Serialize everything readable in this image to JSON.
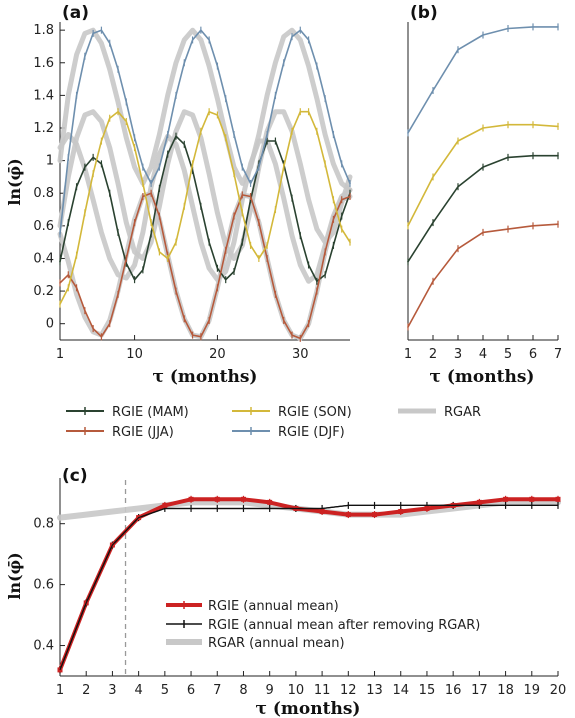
{
  "colors": {
    "MAM": "#2a4230",
    "JJA": "#b65a3c",
    "SON": "#d3b83a",
    "DJF": "#6e8fae",
    "RGAR": "#c8c8c8",
    "annual": "#cc2222",
    "removed": "#111111",
    "vline": "#999999"
  },
  "panels": {
    "a": {
      "label": "(a)"
    },
    "b": {
      "label": "(b)"
    },
    "c": {
      "label": "(c)"
    }
  },
  "legend_top": [
    {
      "key": "MAM",
      "label": "RGIE (MAM)"
    },
    {
      "key": "SON",
      "label": "RGIE (SON)"
    },
    {
      "key": "RGAR",
      "label": "RGAR"
    },
    {
      "key": "JJA",
      "label": "RGIE (JJA)"
    },
    {
      "key": "DJF",
      "label": "RGIE (DJF)"
    }
  ],
  "legend_c": [
    {
      "key": "annual",
      "label": "RGIE (annual mean)"
    },
    {
      "key": "removed",
      "label": "RGIE (annual mean after removing RGAR)"
    },
    {
      "key": "RGAR",
      "label": "RGAR (annual mean)"
    }
  ],
  "chart_data": [
    {
      "panel": "a",
      "type": "line",
      "xlabel": "τ (months)",
      "ylabel": "ln(φ̄)",
      "xlim": [
        1,
        36
      ],
      "ylim": [
        -0.1,
        1.85
      ],
      "xticks": [
        1,
        10,
        20,
        30
      ],
      "yticks": [
        0,
        0.2,
        0.4,
        0.6,
        0.8,
        1,
        1.2,
        1.4,
        1.6,
        1.8
      ],
      "series": [
        {
          "name": "RGIE (MAM)",
          "key": "MAM",
          "x": [
            1,
            2,
            3,
            4,
            5,
            6,
            7,
            8,
            9,
            10,
            11,
            12,
            13,
            14,
            15,
            16,
            17,
            18,
            19,
            20,
            21,
            22,
            23,
            24,
            25,
            26,
            27,
            28,
            29,
            30,
            31,
            32,
            33,
            34,
            35,
            36
          ],
          "values": [
            0.38,
            0.62,
            0.84,
            0.96,
            1.02,
            0.98,
            0.8,
            0.56,
            0.37,
            0.27,
            0.33,
            0.55,
            0.83,
            1.04,
            1.15,
            1.1,
            0.94,
            0.72,
            0.5,
            0.34,
            0.27,
            0.32,
            0.5,
            0.76,
            0.98,
            1.12,
            1.12,
            0.98,
            0.77,
            0.54,
            0.36,
            0.26,
            0.3,
            0.48,
            0.66,
            0.8
          ]
        },
        {
          "name": "RGIE (JJA)",
          "key": "JJA",
          "x": [
            1,
            2,
            3,
            4,
            5,
            6,
            7,
            8,
            9,
            10,
            11,
            12,
            13,
            14,
            15,
            16,
            17,
            18,
            19,
            20,
            21,
            22,
            23,
            24,
            25,
            26,
            27,
            28,
            29,
            30,
            31,
            32,
            33,
            34,
            35,
            36
          ],
          "values": [
            0.25,
            0.3,
            0.22,
            0.08,
            -0.03,
            -0.08,
            0.0,
            0.18,
            0.4,
            0.62,
            0.78,
            0.8,
            0.66,
            0.42,
            0.2,
            0.03,
            -0.07,
            -0.08,
            0.02,
            0.22,
            0.45,
            0.66,
            0.79,
            0.78,
            0.62,
            0.4,
            0.18,
            0.02,
            -0.07,
            -0.09,
            0.0,
            0.2,
            0.44,
            0.64,
            0.76,
            0.78
          ]
        },
        {
          "name": "RGIE (SON)",
          "key": "SON",
          "x": [
            1,
            2,
            3,
            4,
            5,
            6,
            7,
            8,
            9,
            10,
            11,
            12,
            13,
            14,
            15,
            16,
            17,
            18,
            19,
            20,
            21,
            22,
            23,
            24,
            25,
            26,
            27,
            28,
            29,
            30,
            31,
            32,
            33,
            34,
            35,
            36
          ],
          "values": [
            0.12,
            0.22,
            0.42,
            0.68,
            0.92,
            1.12,
            1.26,
            1.3,
            1.24,
            1.08,
            0.86,
            0.62,
            0.44,
            0.4,
            0.5,
            0.72,
            0.98,
            1.18,
            1.3,
            1.28,
            1.14,
            0.92,
            0.68,
            0.48,
            0.4,
            0.48,
            0.7,
            0.96,
            1.18,
            1.3,
            1.3,
            1.18,
            0.98,
            0.76,
            0.58,
            0.5
          ]
        },
        {
          "name": "RGIE (DJF)",
          "key": "DJF",
          "x": [
            1,
            2,
            3,
            4,
            5,
            6,
            7,
            8,
            9,
            10,
            11,
            12,
            13,
            14,
            15,
            16,
            17,
            18,
            19,
            20,
            21,
            22,
            23,
            24,
            25,
            26,
            27,
            28,
            29,
            30,
            31,
            32,
            33,
            34,
            35,
            36
          ],
          "values": [
            0.55,
            1.02,
            1.4,
            1.64,
            1.78,
            1.8,
            1.72,
            1.56,
            1.36,
            1.14,
            0.96,
            0.86,
            0.96,
            1.16,
            1.4,
            1.6,
            1.74,
            1.8,
            1.74,
            1.58,
            1.38,
            1.16,
            0.96,
            0.86,
            0.96,
            1.16,
            1.4,
            1.6,
            1.76,
            1.8,
            1.74,
            1.58,
            1.38,
            1.16,
            0.98,
            0.86
          ]
        },
        {
          "name": "RGAR",
          "key": "RGAR",
          "x": [
            1,
            2,
            3,
            4,
            5,
            6,
            7,
            8,
            9,
            10,
            11,
            12,
            13,
            14,
            15,
            16,
            17,
            18,
            19,
            20,
            21,
            22,
            23,
            24,
            25,
            26,
            27,
            28,
            29,
            30,
            31,
            32,
            33,
            34,
            35,
            36
          ],
          "values": [
            1.0,
            1.4,
            1.65,
            1.78,
            1.8,
            1.72,
            1.56,
            1.36,
            1.14,
            0.96,
            0.86,
            0.96,
            1.16,
            1.4,
            1.6,
            1.74,
            1.8,
            1.74,
            1.58,
            1.38,
            1.16,
            0.96,
            0.86,
            0.96,
            1.16,
            1.4,
            1.6,
            1.76,
            1.8,
            1.74,
            1.58,
            1.38,
            1.16,
            0.98,
            0.86,
            0.82
          ]
        },
        {
          "name": "RGAR",
          "key": "RGAR",
          "x": [
            1,
            2,
            3,
            4,
            5,
            6,
            7,
            8,
            9,
            10,
            11,
            12,
            13,
            14,
            15,
            16,
            17,
            18,
            19,
            20,
            21,
            22,
            23,
            24,
            25,
            26,
            27,
            28,
            29,
            30,
            31,
            32,
            33,
            34,
            35,
            36
          ],
          "values": [
            1.08,
            1.16,
            1.1,
            0.95,
            0.76,
            0.56,
            0.4,
            0.3,
            0.28,
            0.36,
            0.56,
            0.84,
            1.04,
            1.15,
            1.1,
            0.94,
            0.72,
            0.5,
            0.34,
            0.27,
            0.32,
            0.5,
            0.76,
            0.98,
            1.12,
            1.12,
            0.98,
            0.77,
            0.54,
            0.36,
            0.26,
            0.3,
            0.48,
            0.66,
            0.78,
            0.82
          ]
        },
        {
          "name": "RGAR",
          "key": "RGAR",
          "x": [
            1,
            2,
            3,
            4,
            5,
            6,
            7,
            8,
            9,
            10,
            11,
            12,
            13,
            14,
            15,
            16,
            17,
            18,
            19,
            20,
            21,
            22,
            23,
            24,
            25,
            26,
            27,
            28,
            29,
            30,
            31,
            32,
            33,
            34,
            35,
            36
          ],
          "values": [
            0.6,
            0.9,
            1.14,
            1.28,
            1.3,
            1.24,
            1.08,
            0.86,
            0.62,
            0.44,
            0.4,
            0.5,
            0.72,
            0.98,
            1.18,
            1.3,
            1.28,
            1.14,
            0.92,
            0.68,
            0.48,
            0.4,
            0.48,
            0.7,
            0.96,
            1.18,
            1.3,
            1.3,
            1.18,
            0.98,
            0.76,
            0.58,
            0.5,
            0.56,
            0.74,
            0.9
          ]
        },
        {
          "name": "RGAR",
          "key": "RGAR",
          "x": [
            1,
            2,
            3,
            4,
            5,
            6,
            7,
            8,
            9,
            10,
            11,
            12,
            13,
            14,
            15,
            16,
            17,
            18,
            19,
            20,
            21,
            22,
            23,
            24,
            25,
            26,
            27,
            28,
            29,
            30,
            31,
            32,
            33,
            34,
            35,
            36
          ],
          "values": [
            0.55,
            0.38,
            0.18,
            0.04,
            -0.05,
            -0.07,
            0.02,
            0.2,
            0.42,
            0.64,
            0.78,
            0.8,
            0.64,
            0.42,
            0.2,
            0.03,
            -0.07,
            -0.08,
            0.02,
            0.22,
            0.45,
            0.66,
            0.79,
            0.78,
            0.62,
            0.4,
            0.18,
            0.02,
            -0.07,
            -0.09,
            0.0,
            0.2,
            0.44,
            0.64,
            0.76,
            0.78
          ]
        }
      ]
    },
    {
      "panel": "b",
      "type": "line",
      "xlabel": "τ (months)",
      "xlim": [
        1,
        7
      ],
      "ylim": [
        -0.1,
        1.85
      ],
      "xticks": [
        1,
        2,
        3,
        4,
        5,
        6,
        7
      ],
      "series": [
        {
          "name": "RGIE (DJF)",
          "key": "DJF",
          "x": [
            1,
            2,
            3,
            4,
            5,
            6,
            7
          ],
          "values": [
            1.17,
            1.43,
            1.68,
            1.77,
            1.81,
            1.82,
            1.82
          ]
        },
        {
          "name": "RGIE (SON)",
          "key": "SON",
          "x": [
            1,
            2,
            3,
            4,
            5,
            6,
            7
          ],
          "values": [
            0.6,
            0.9,
            1.12,
            1.2,
            1.22,
            1.22,
            1.21
          ]
        },
        {
          "name": "RGIE (MAM)",
          "key": "MAM",
          "x": [
            1,
            2,
            3,
            4,
            5,
            6,
            7
          ],
          "values": [
            0.38,
            0.62,
            0.84,
            0.96,
            1.02,
            1.03,
            1.03
          ]
        },
        {
          "name": "RGIE (JJA)",
          "key": "JJA",
          "x": [
            1,
            2,
            3,
            4,
            5,
            6,
            7
          ],
          "values": [
            -0.02,
            0.26,
            0.46,
            0.56,
            0.58,
            0.6,
            0.61
          ]
        }
      ]
    },
    {
      "panel": "c",
      "type": "line",
      "xlabel": "τ (months)",
      "ylabel": "ln(φ̄)",
      "xlim": [
        1,
        20
      ],
      "ylim": [
        0.3,
        0.95
      ],
      "xticks": [
        1,
        2,
        3,
        4,
        5,
        6,
        7,
        8,
        9,
        10,
        11,
        12,
        13,
        14,
        15,
        16,
        17,
        18,
        19,
        20
      ],
      "yticks": [
        0.4,
        0.6,
        0.8
      ],
      "vline_x": 3.5,
      "series": [
        {
          "name": "RGAR (annual mean)",
          "key": "RGAR",
          "x": [
            1,
            2,
            3,
            4,
            5,
            6,
            7,
            8,
            9,
            10,
            11,
            12,
            13,
            14,
            15,
            16,
            17,
            18,
            19,
            20
          ],
          "values": [
            0.82,
            0.83,
            0.84,
            0.85,
            0.86,
            0.87,
            0.87,
            0.87,
            0.86,
            0.85,
            0.84,
            0.83,
            0.83,
            0.83,
            0.84,
            0.85,
            0.86,
            0.87,
            0.87,
            0.87
          ]
        },
        {
          "name": "RGIE (annual mean)",
          "key": "annual",
          "x": [
            1,
            2,
            3,
            4,
            5,
            6,
            7,
            8,
            9,
            10,
            11,
            12,
            13,
            14,
            15,
            16,
            17,
            18,
            19,
            20
          ],
          "values": [
            0.32,
            0.54,
            0.73,
            0.82,
            0.86,
            0.88,
            0.88,
            0.88,
            0.87,
            0.85,
            0.84,
            0.83,
            0.83,
            0.84,
            0.85,
            0.86,
            0.87,
            0.88,
            0.88,
            0.88
          ]
        },
        {
          "name": "RGIE (annual mean after removing RGAR)",
          "key": "removed",
          "x": [
            1,
            2,
            3,
            4,
            5,
            6,
            7,
            8,
            9,
            10,
            11,
            12,
            13,
            14,
            15,
            16,
            17,
            18,
            19,
            20
          ],
          "values": [
            0.32,
            0.54,
            0.73,
            0.82,
            0.85,
            0.85,
            0.85,
            0.85,
            0.85,
            0.85,
            0.85,
            0.86,
            0.86,
            0.86,
            0.86,
            0.86,
            0.86,
            0.86,
            0.86,
            0.86
          ]
        }
      ]
    }
  ]
}
